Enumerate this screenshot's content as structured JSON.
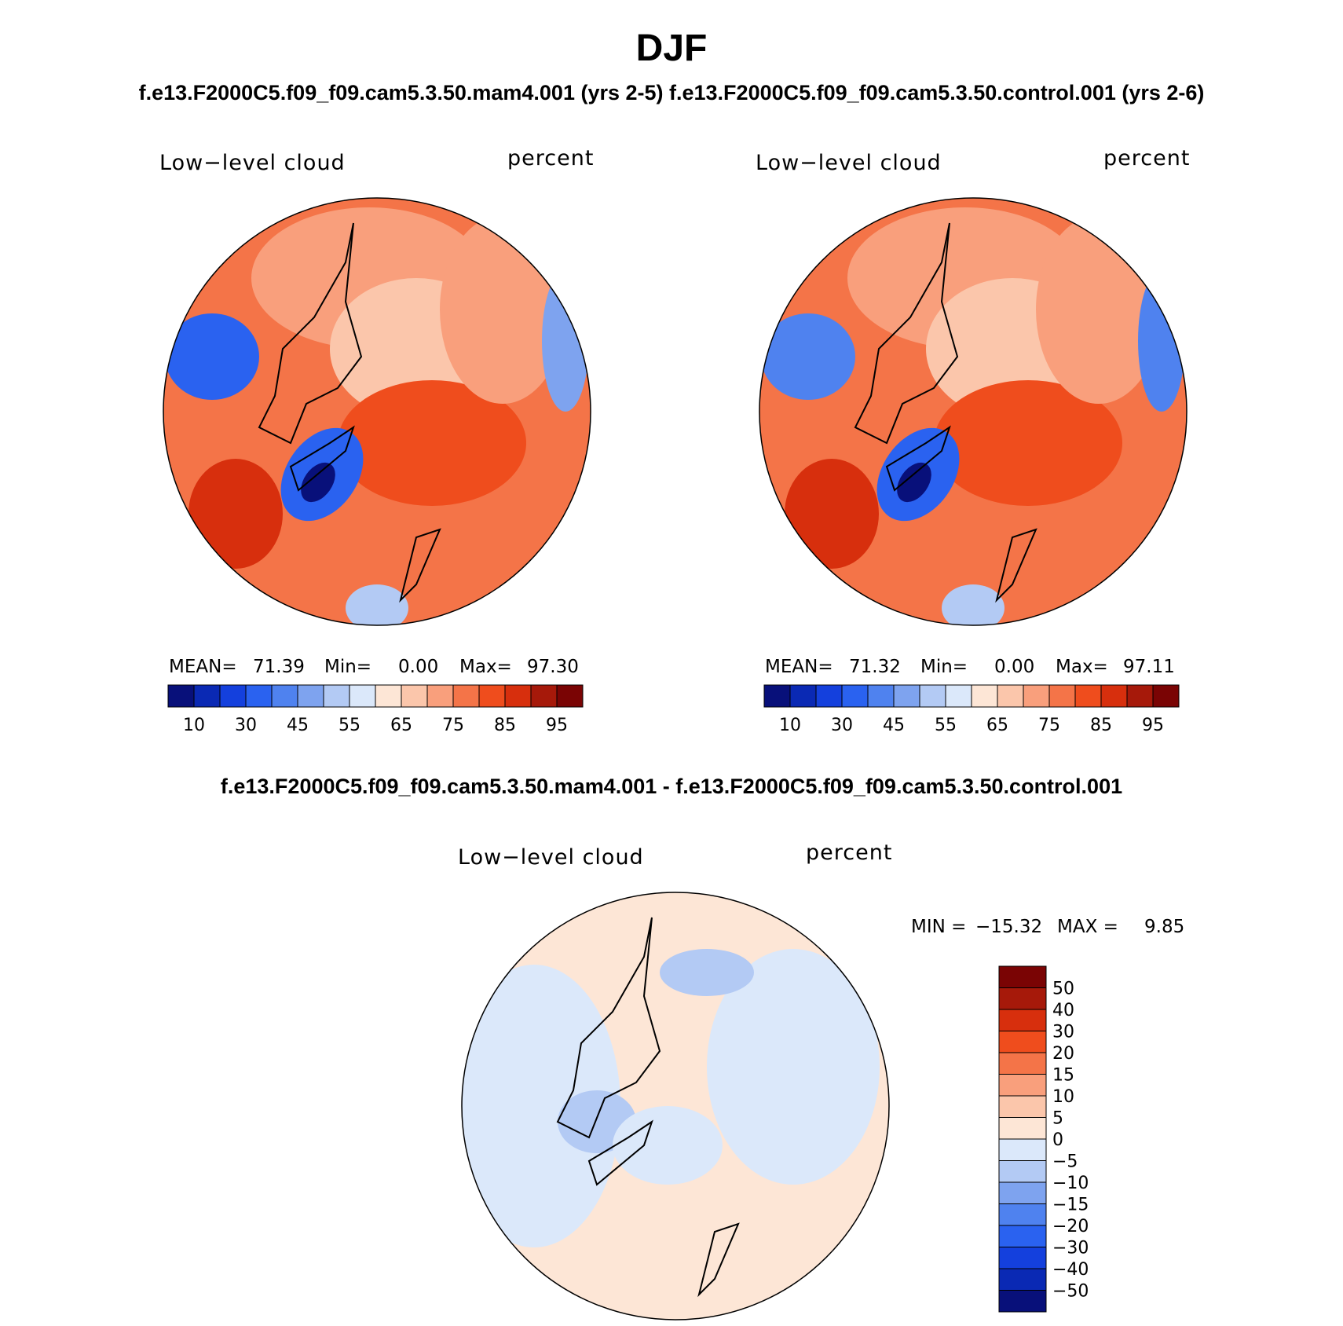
{
  "title": "DJF",
  "subtitle": "f.e13.F2000C5.f09_f09.cam5.3.50.mam4.001 (yrs 2-5) f.e13.F2000C5.f09_f09.cam5.3.50.control.001 (yrs 2-6)",
  "diff_title": "f.e13.F2000C5.f09_f09.cam5.3.50.mam4.001 - f.e13.F2000C5.f09_f09.cam5.3.50.control.001",
  "panels": [
    {
      "variable": "Low−level cloud",
      "units": "percent",
      "mean_label": "MEAN=",
      "mean_value": "71.39",
      "min_label": "Min=",
      "min_value": "0.00",
      "max_label": "Max=",
      "max_value": "97.30"
    },
    {
      "variable": "Low−level cloud",
      "units": "percent",
      "mean_label": "MEAN=",
      "mean_value": "71.32",
      "min_label": "Min=",
      "min_value": "0.00",
      "max_label": "Max=",
      "max_value": "97.11"
    }
  ],
  "diff_panel": {
    "variable": "Low−level cloud",
    "units": "percent",
    "min_label": "MIN =",
    "min_value": "−15.32",
    "max_label": "MAX =",
    "max_value": "9.85"
  },
  "colorbar_abs": {
    "colors": [
      "#08107a",
      "#0a29b4",
      "#1440dd",
      "#2a62f0",
      "#4f82ef",
      "#7ea3ef",
      "#b3caf4",
      "#dbe8fa",
      "#fde6d6",
      "#fbc6ab",
      "#f99f7c",
      "#f47448",
      "#ef4d1d",
      "#d72f0d",
      "#a6190a",
      "#7a0404"
    ],
    "tick_labels": [
      "10",
      "30",
      "45",
      "55",
      "65",
      "75",
      "85",
      "95"
    ]
  },
  "colorbar_diff": {
    "colors": [
      "#7a0404",
      "#a6190a",
      "#d72f0d",
      "#ef4d1d",
      "#f47448",
      "#f99f7c",
      "#fbc6ab",
      "#fde6d6",
      "#dbe8fa",
      "#b3caf4",
      "#7ea3ef",
      "#4f82ef",
      "#2a62f0",
      "#1440dd",
      "#0a29b4",
      "#08107a"
    ],
    "tick_labels": [
      "50",
      "40",
      "30",
      "20",
      "15",
      "10",
      "5",
      "0",
      "−5",
      "−10",
      "−15",
      "−20",
      "−30",
      "−40",
      "−50"
    ]
  },
  "map_colors": {
    "panel_dominant": "#f47448",
    "diff_dominant_warm": "#fde6d6",
    "diff_dominant_cool": "#dbe8fa",
    "coastline": "#000000"
  }
}
